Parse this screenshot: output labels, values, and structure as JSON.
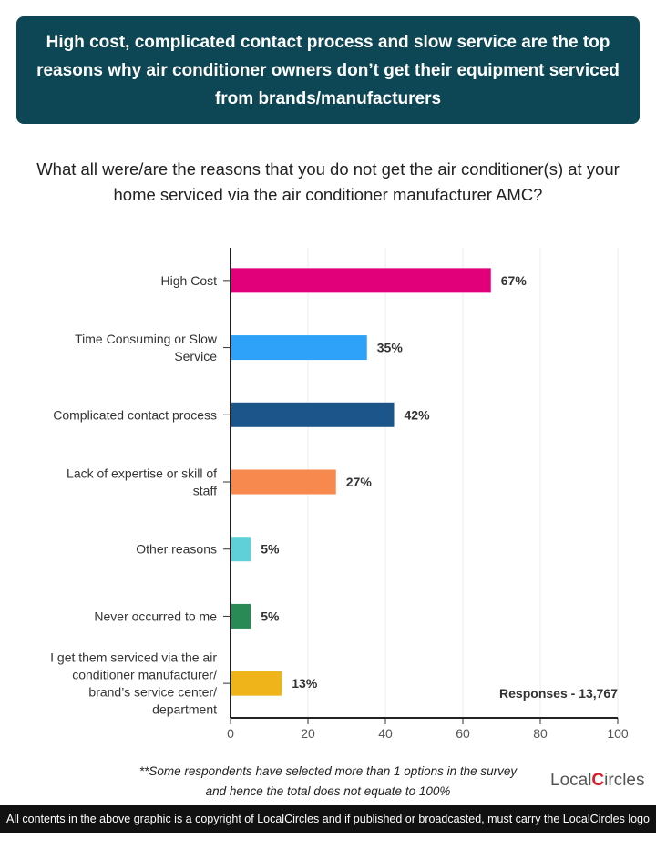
{
  "header": {
    "title": "High cost, complicated contact process and slow service are the top reasons why air conditioner owners don’t get their equipment serviced from brands/manufacturers"
  },
  "question": "What all were/are the reasons that you do not get the air conditioner(s) at your home serviced via the air conditioner manufacturer AMC?",
  "chart_data": {
    "type": "bar",
    "orientation": "horizontal",
    "categories": [
      [
        "High Cost"
      ],
      [
        "Time Consuming or Slow",
        "Service"
      ],
      [
        "Complicated contact process"
      ],
      [
        "Lack of expertise or skill of",
        "staff"
      ],
      [
        "Other reasons"
      ],
      [
        "Never occurred to me"
      ],
      [
        "I get them serviced via the air",
        "conditioner manufacturer/",
        "brand’s service center/",
        "department"
      ]
    ],
    "values": [
      67,
      35,
      42,
      27,
      5,
      5,
      13
    ],
    "data_labels": [
      "67%",
      "35%",
      "42%",
      "27%",
      "5%",
      "5%",
      "13%"
    ],
    "colors": [
      "#e2007a",
      "#2ea1f8",
      "#1b5589",
      "#f7894f",
      "#5fcfd8",
      "#2a8a55",
      "#f0b41b"
    ],
    "xlim": [
      0,
      100
    ],
    "xticks": [
      "0",
      "20",
      "40",
      "60",
      "80",
      "100"
    ],
    "grid": true,
    "annotation": "Responses - 13,767"
  },
  "note": [
    "**Some respondents have selected more than 1 options in the survey",
    "and hence the total does not equate to 100%"
  ],
  "logo": {
    "text1": "Local",
    "text2": "Circles"
  },
  "footer": "All contents in the above graphic is a copyright of LocalCircles and if published or broadcasted, must carry the LocalCircles logo along with it."
}
